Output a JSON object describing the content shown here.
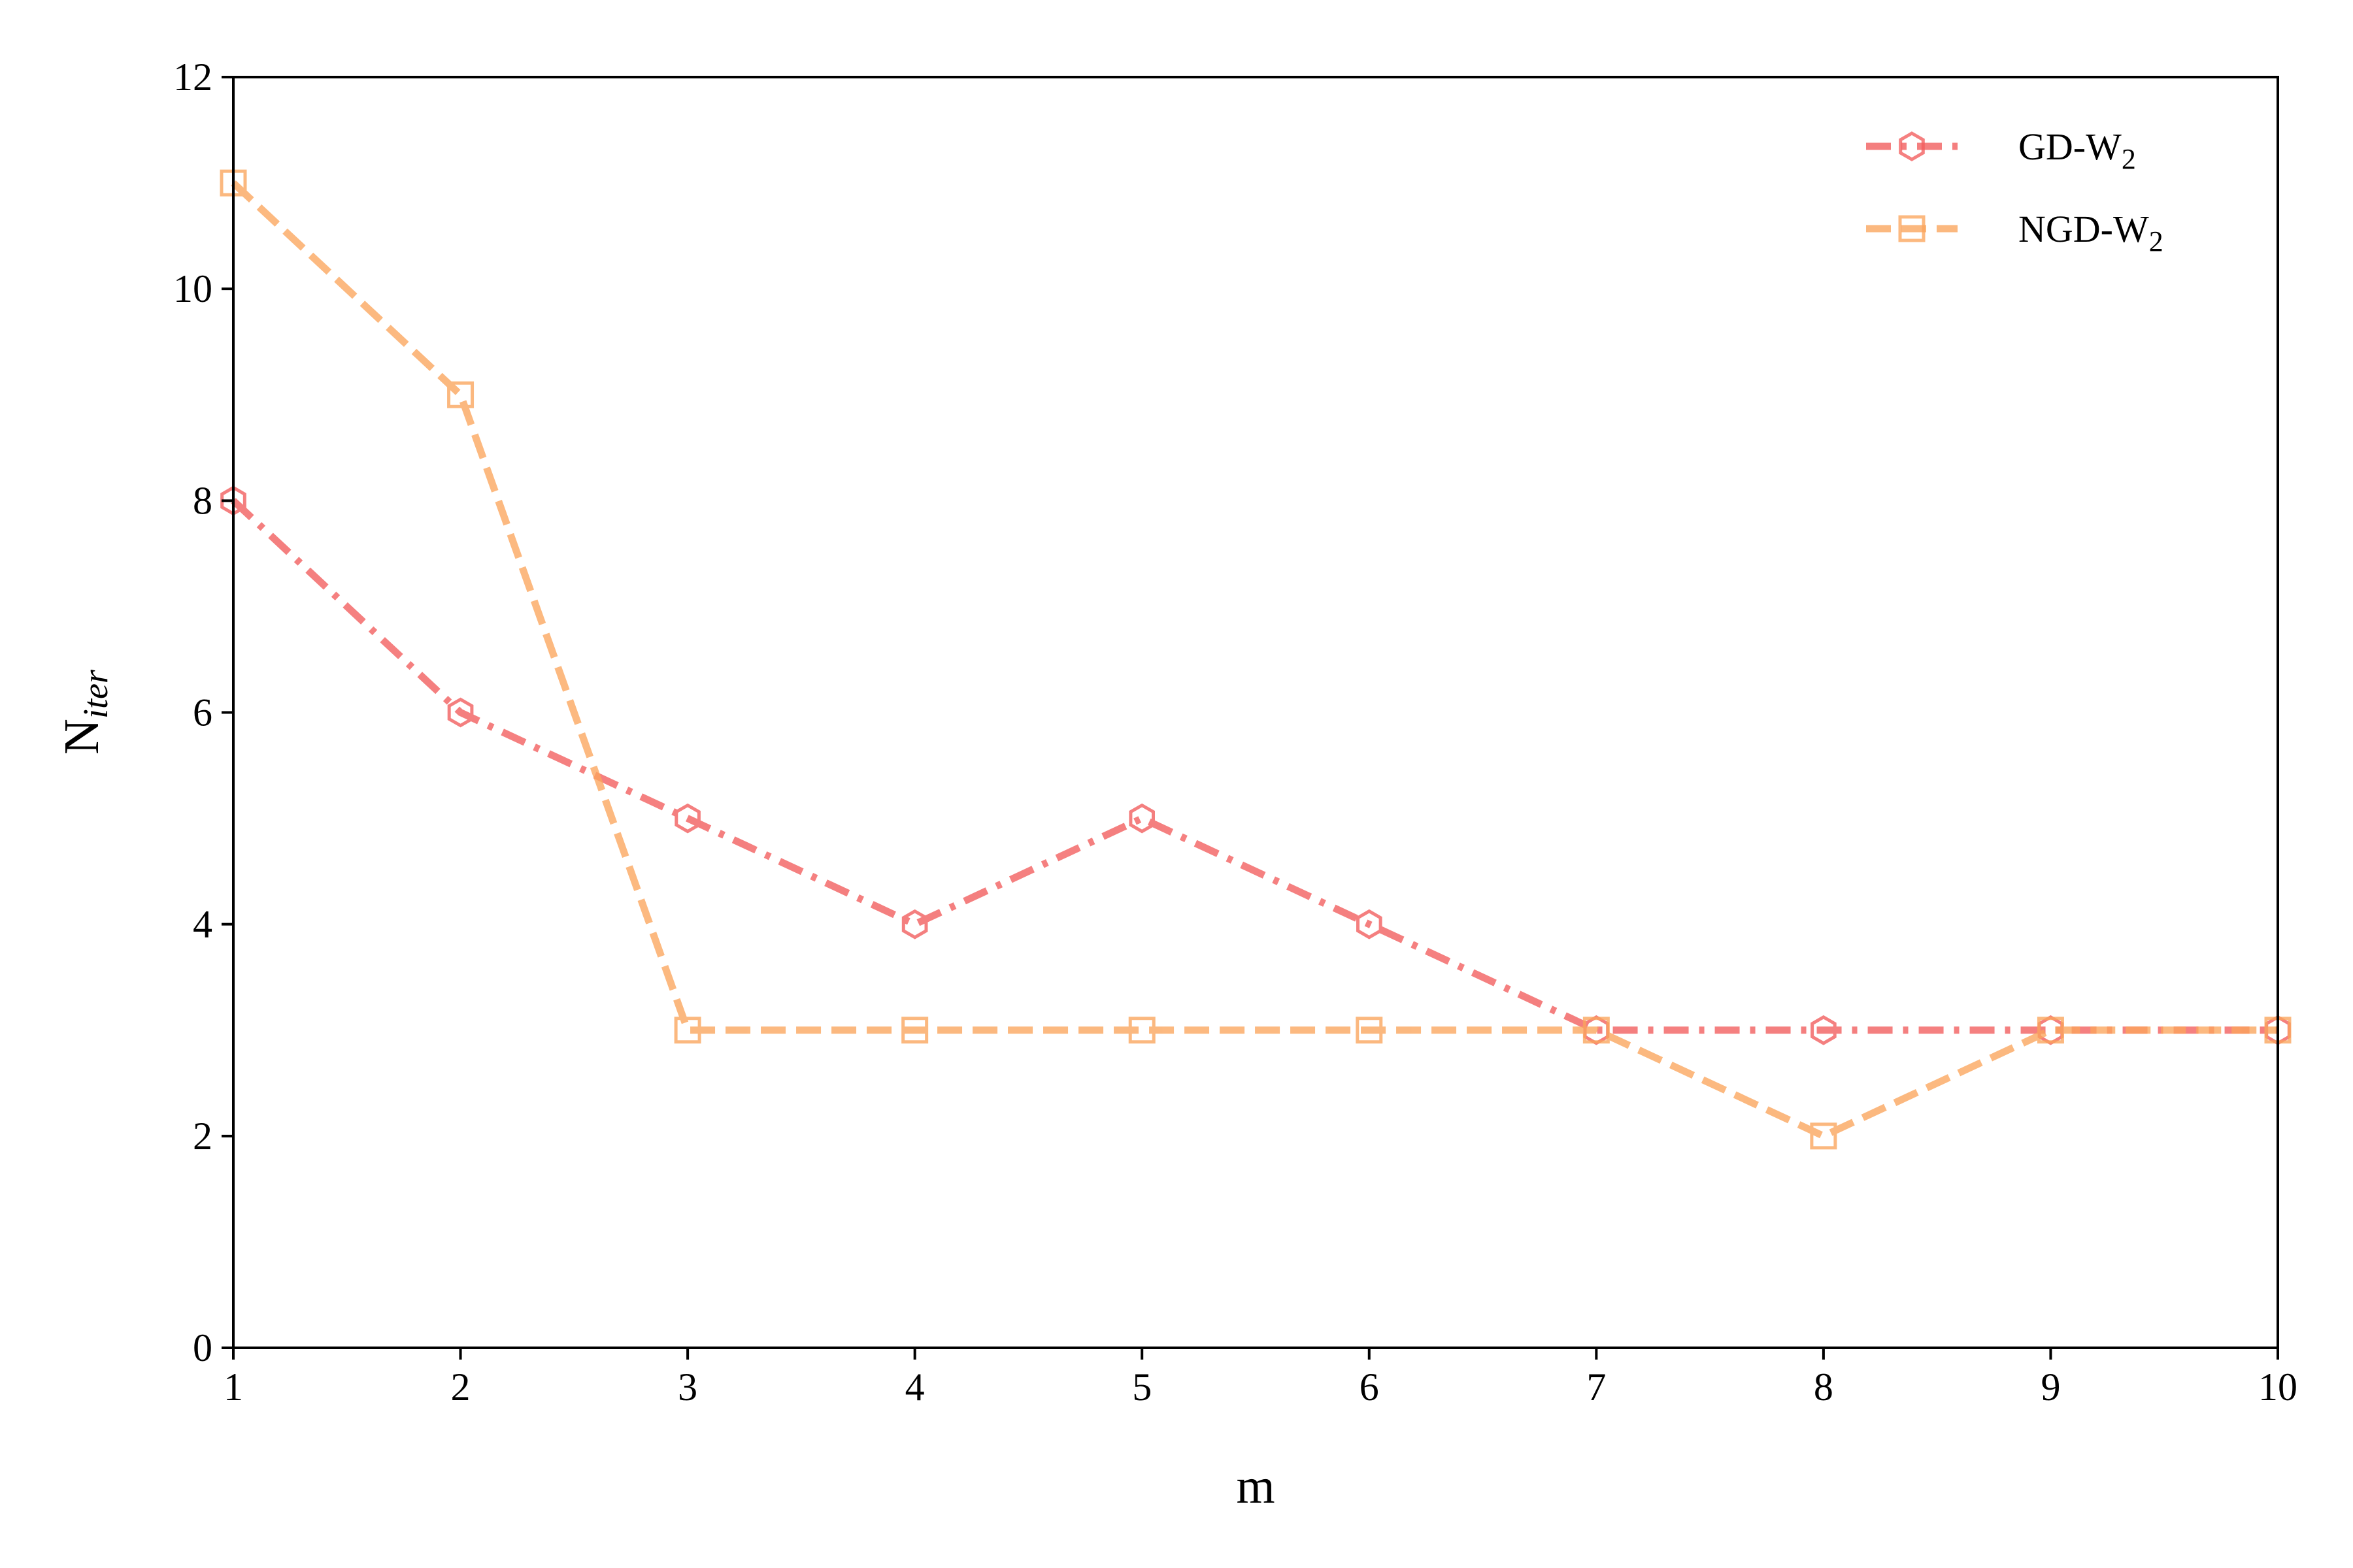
{
  "chart_data": {
    "type": "line",
    "xlabel": "m",
    "ylabel": {
      "base": "N",
      "sub": "iter"
    },
    "xlim": [
      1,
      10
    ],
    "ylim": [
      0,
      12
    ],
    "xticks": [
      1,
      2,
      3,
      4,
      5,
      6,
      7,
      8,
      9,
      10
    ],
    "yticks": [
      0,
      2,
      4,
      6,
      8,
      10,
      12
    ],
    "grid": false,
    "legend_position": "top-right",
    "series": [
      {
        "name": "GD-W2",
        "legend_base": "GD-W",
        "legend_sub": "2",
        "color": "#f25c5c",
        "line_style": "dash-dot",
        "marker": "hexagon",
        "x": [
          1,
          2,
          3,
          4,
          5,
          6,
          7,
          8,
          9,
          10
        ],
        "y": [
          8,
          6,
          5,
          4,
          5,
          4,
          3,
          3,
          3,
          3
        ]
      },
      {
        "name": "NGD-W2",
        "legend_base": "NGD-W",
        "legend_sub": "2",
        "color": "#fba55c",
        "line_style": "dashed",
        "marker": "square",
        "x": [
          1,
          2,
          3,
          4,
          5,
          6,
          7,
          8,
          9,
          10
        ],
        "y": [
          11,
          9,
          3,
          3,
          3,
          3,
          3,
          2,
          3,
          3
        ]
      }
    ]
  }
}
